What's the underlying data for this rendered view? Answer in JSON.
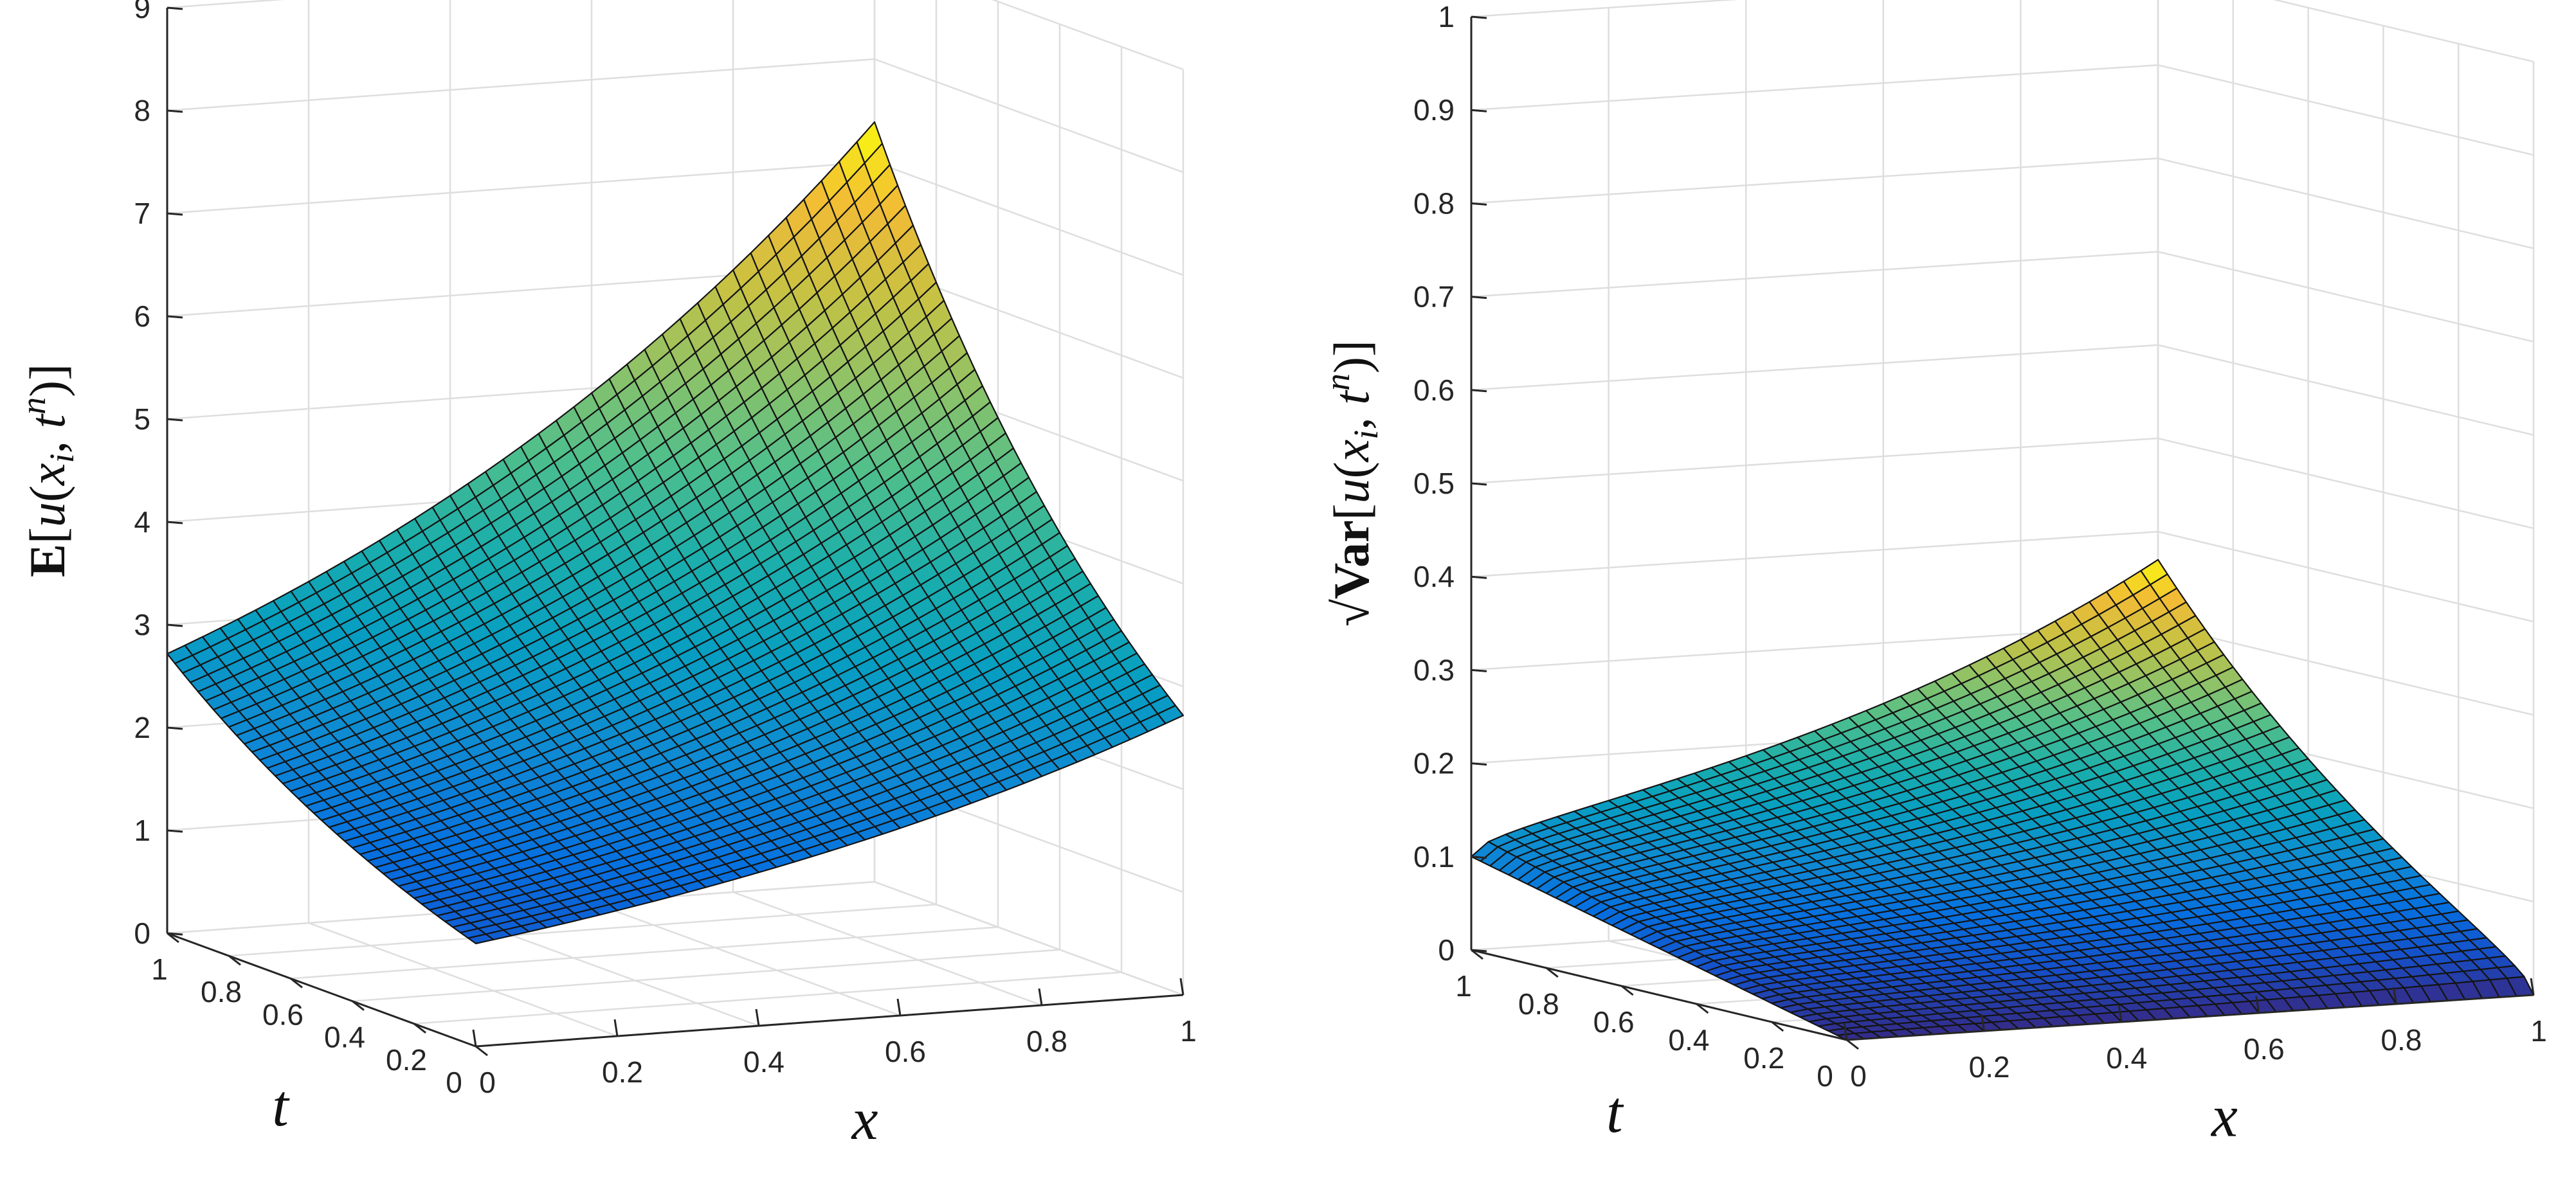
{
  "chart_data": [
    {
      "type": "surface",
      "panel": "left",
      "xlabel": "x",
      "ylabel": "t",
      "zlabel": "E[u(x_i, t^n)]",
      "zlabel_parts": [
        "E",
        "[",
        "u",
        "(",
        "x",
        "i",
        ", ",
        "t",
        "n",
        ")]"
      ],
      "xlim": [
        0,
        1
      ],
      "ylim": [
        0,
        1
      ],
      "zlim": [
        0,
        9
      ],
      "x_ticks": [
        0,
        0.2,
        0.4,
        0.6,
        0.8,
        1
      ],
      "x_tick_labels": [
        "0",
        "0.2",
        "0.4",
        "0.6",
        "0.8",
        "1"
      ],
      "y_ticks": [
        0,
        0.2,
        0.4,
        0.6,
        0.8,
        1
      ],
      "y_tick_labels": [
        "0",
        "0.2",
        "0.4",
        "0.6",
        "0.8",
        "1"
      ],
      "z_ticks": [
        0,
        1,
        2,
        3,
        4,
        5,
        6,
        7,
        8,
        9
      ],
      "z_tick_labels": [
        "0",
        "1",
        "2",
        "3",
        "4",
        "5",
        "6",
        "7",
        "8",
        "9"
      ],
      "surface": {
        "formula": "z = exp(x + t)",
        "corners": {
          "x0_t0": 1.0,
          "x1_t0": 2.72,
          "x0_t1": 2.72,
          "x1_t1": 7.39
        },
        "grid_x": 41,
        "grid_t": 41
      },
      "colormap": "parula",
      "grid": true
    },
    {
      "type": "surface",
      "panel": "right",
      "xlabel": "x",
      "ylabel": "t",
      "zlabel": "√Var[u(x_i, t^n)]",
      "zlabel_parts": [
        "√",
        "Var",
        "[",
        "u",
        "(",
        "x",
        "i",
        ", ",
        "t",
        "n",
        ")]"
      ],
      "xlim": [
        0,
        1
      ],
      "ylim": [
        0,
        1
      ],
      "zlim": [
        0,
        1
      ],
      "x_ticks": [
        0,
        0.2,
        0.4,
        0.6,
        0.8,
        1
      ],
      "x_tick_labels": [
        "0",
        "0.2",
        "0.4",
        "0.6",
        "0.8",
        "1"
      ],
      "y_ticks": [
        0,
        0.2,
        0.4,
        0.6,
        0.8,
        1
      ],
      "y_tick_labels": [
        "0",
        "0.2",
        "0.4",
        "0.6",
        "0.8",
        "1"
      ],
      "z_ticks": [
        0,
        0.1,
        0.2,
        0.3,
        0.4,
        0.5,
        0.6,
        0.7,
        0.8,
        0.9,
        1
      ],
      "z_tick_labels": [
        "0",
        "0.1",
        "0.2",
        "0.3",
        "0.4",
        "0.5",
        "0.6",
        "0.7",
        "0.8",
        "0.9",
        "1"
      ],
      "surface": {
        "formula": "z = sqrt(exp(2(x+t)) (exp(x t) - 1)) * scale",
        "corners": {
          "x0_t0": 0.0,
          "x1_t0": 0.0,
          "x0_t1": 0.1,
          "x1_t1": 0.37
        },
        "grid_x": 41,
        "grid_t": 41
      },
      "colormap": "parula",
      "grid": true
    }
  ]
}
